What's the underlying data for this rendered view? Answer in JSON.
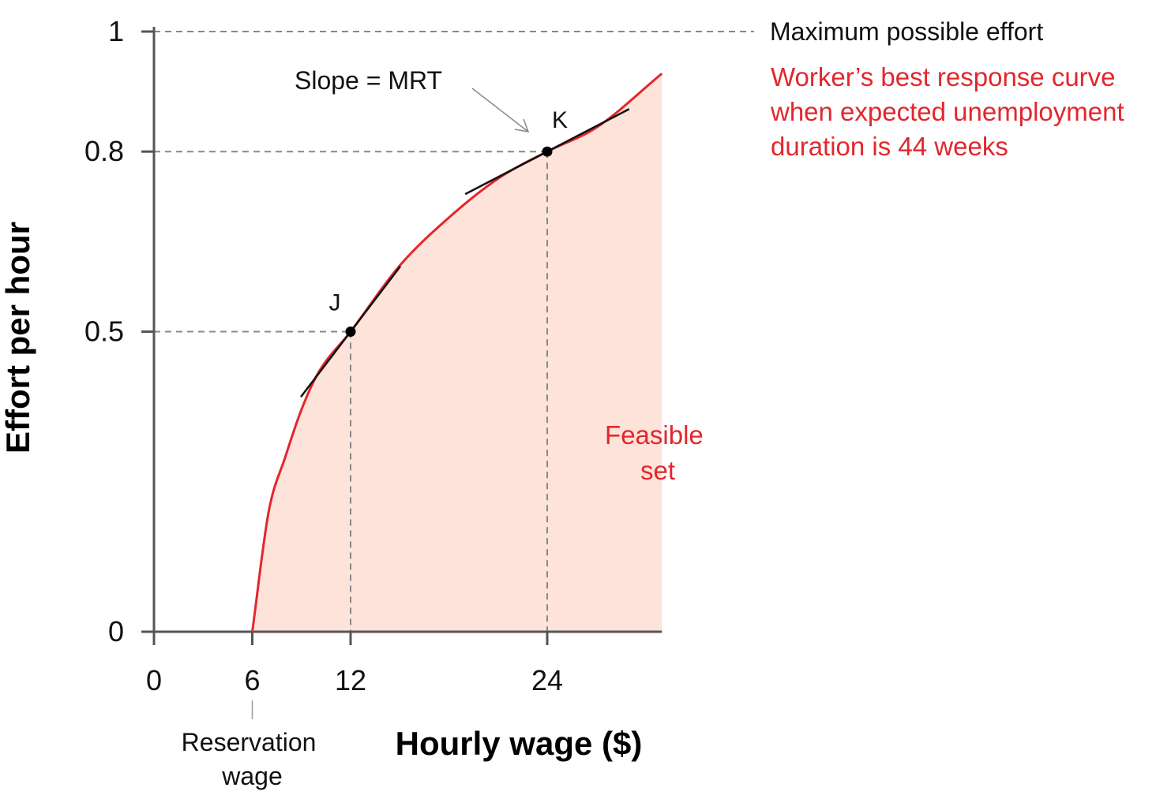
{
  "chart_data": {
    "type": "line",
    "title": "",
    "xlabel": "Hourly wage ($)",
    "ylabel": "Effort per hour",
    "xlim": [
      0,
      31
    ],
    "ylim": [
      0,
      1
    ],
    "x_ticks": [
      "0",
      "6",
      "12",
      "24"
    ],
    "y_ticks": [
      "0",
      "0.5",
      "0.8",
      "1"
    ],
    "grid": false,
    "curve": {
      "label_lines": [
        "Worker’s best response curve",
        "when expected unemployment",
        "duration is 44 weeks"
      ],
      "color": "#e3262d",
      "reservation_wage": 6,
      "samples": [
        {
          "x": 6,
          "y": 0
        },
        {
          "x": 7,
          "y": 0.2
        },
        {
          "x": 8,
          "y": 0.29
        },
        {
          "x": 9,
          "y": 0.37
        },
        {
          "x": 10,
          "y": 0.43
        },
        {
          "x": 12,
          "y": 0.5
        },
        {
          "x": 15,
          "y": 0.61
        },
        {
          "x": 18,
          "y": 0.69
        },
        {
          "x": 21,
          "y": 0.755
        },
        {
          "x": 24,
          "y": 0.8
        },
        {
          "x": 27,
          "y": 0.84
        },
        {
          "x": 31,
          "y": 0.93
        }
      ]
    },
    "points": [
      {
        "label": "J",
        "x": 12,
        "y": 0.5
      },
      {
        "label": "K",
        "x": 24,
        "y": 0.8
      }
    ],
    "max_effort": {
      "y": 1,
      "label": "Maximum possible effort"
    },
    "feasible_label_lines": [
      "Feasible",
      "set"
    ],
    "feasible_color": "#fde3d9",
    "slope_label": "Slope = MRT",
    "reservation_label_lines": [
      "Reservation",
      "wage"
    ]
  }
}
